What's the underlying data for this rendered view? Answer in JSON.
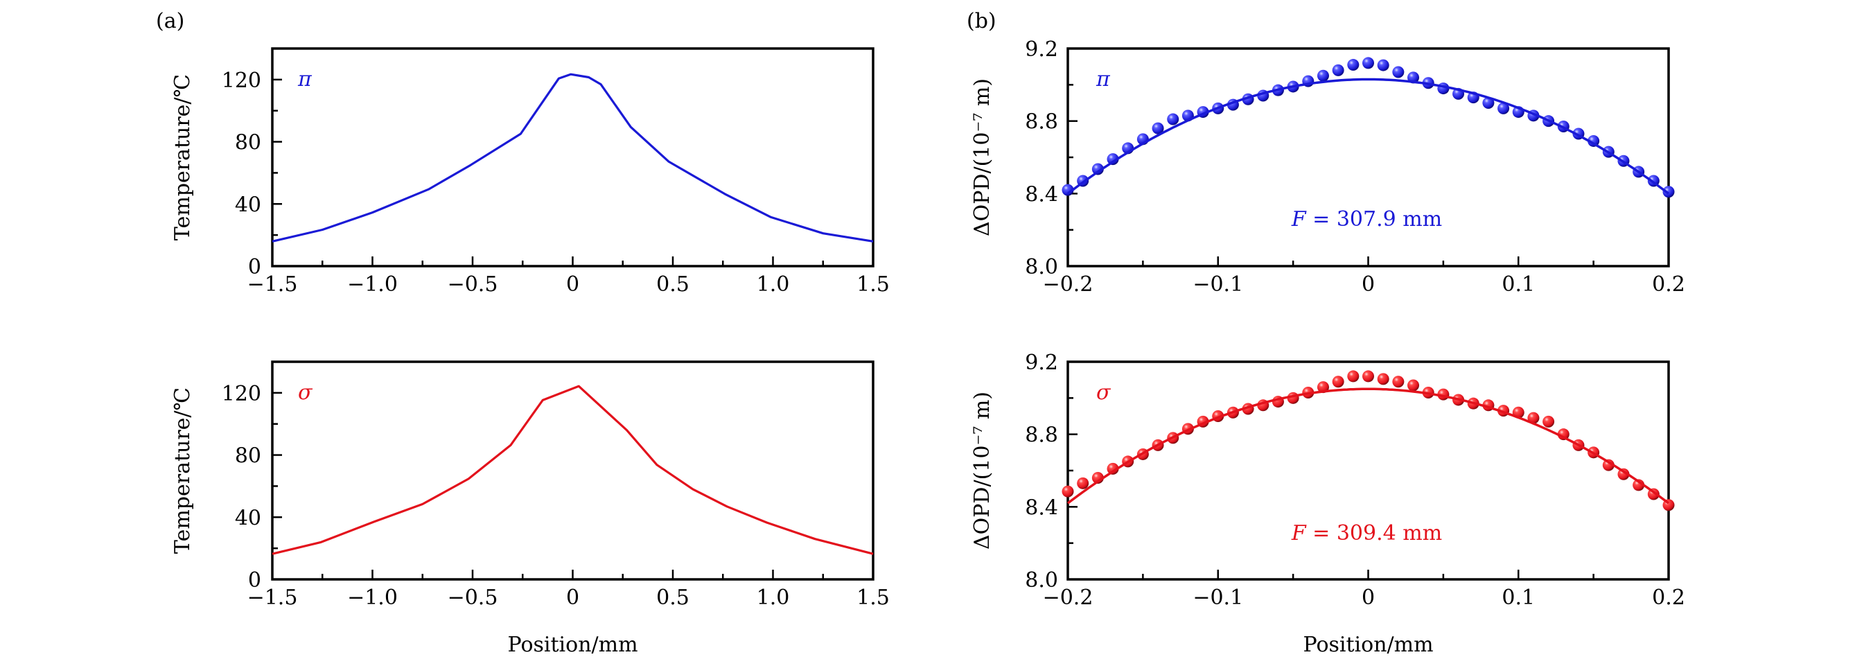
{
  "figure": {
    "panel_labels": [
      "(a)",
      "(b)"
    ],
    "shared_xlabel": "Position/mm"
  },
  "colors": {
    "pi": "#1a1ad6",
    "sigma": "#e3121c",
    "axis": "#000000"
  },
  "chart_data": [
    {
      "id": "a-pi",
      "panel": "(a)",
      "type": "line",
      "title": "",
      "annotation": "π",
      "series_color_key": "pi",
      "xlabel": "",
      "ylabel": "Temperature/℃",
      "xlim": [
        -1.5,
        1.5
      ],
      "ylim": [
        0,
        140
      ],
      "xticks": [
        -1.5,
        -1.0,
        -0.5,
        0,
        0.5,
        1.0,
        1.5
      ],
      "xtick_labels": [
        "−1.5",
        "−1.0",
        "−0.5",
        "0",
        "0.5",
        "1.0",
        "1.5"
      ],
      "yticks": [
        0,
        40,
        80,
        120
      ],
      "ytick_labels": [
        "0",
        "40",
        "80",
        "120"
      ],
      "y_minor_step": 20,
      "x_minor_step": 0.25,
      "grid": false,
      "series": [
        {
          "name": "π",
          "x": [
            -1.5,
            -1.25,
            -1.0,
            -0.72,
            -0.51,
            -0.26,
            -0.07,
            -0.01,
            0.08,
            0.14,
            0.29,
            0.48,
            0.76,
            0.99,
            1.25,
            1.5
          ],
          "y": [
            15.9,
            23.4,
            34.5,
            49.4,
            65.0,
            85.1,
            120.7,
            123.4,
            121.5,
            117.0,
            89.5,
            67.2,
            46.4,
            31.5,
            21.1,
            15.9
          ]
        }
      ]
    },
    {
      "id": "a-sigma",
      "panel": "(a)",
      "type": "line",
      "title": "",
      "annotation": "σ",
      "series_color_key": "sigma",
      "xlabel": "Position/mm",
      "ylabel": "Temperature/℃",
      "xlim": [
        -1.5,
        1.5
      ],
      "ylim": [
        0,
        140
      ],
      "xticks": [
        -1.5,
        -1.0,
        -0.5,
        0,
        0.5,
        1.0,
        1.5
      ],
      "xtick_labels": [
        "−1.5",
        "−1.0",
        "−0.5",
        "0",
        "0.5",
        "1.0",
        "1.5"
      ],
      "yticks": [
        0,
        40,
        80,
        120
      ],
      "ytick_labels": [
        "0",
        "40",
        "80",
        "120"
      ],
      "y_minor_step": 20,
      "x_minor_step": 0.25,
      "grid": false,
      "series": [
        {
          "name": "σ",
          "x": [
            -1.5,
            -1.26,
            -0.99,
            -0.75,
            -0.52,
            -0.31,
            -0.15,
            0.03,
            0.27,
            0.42,
            0.6,
            0.77,
            0.97,
            1.21,
            1.5
          ],
          "y": [
            16.4,
            23.8,
            37.2,
            48.4,
            64.7,
            86.3,
            115.3,
            124.3,
            96.0,
            73.7,
            58.0,
            46.9,
            36.5,
            26.0,
            16.4
          ]
        }
      ]
    },
    {
      "id": "b-pi",
      "panel": "(b)",
      "type": "scatter",
      "title": "",
      "annotation": "π",
      "fit_label_prefix": "F",
      "fit_label_value": "= 307.9 mm",
      "series_color_key": "pi",
      "xlabel": "",
      "ylabel": "ΔOPD/(10⁻⁷ m)",
      "xlim": [
        -0.2,
        0.2
      ],
      "ylim": [
        8.0,
        9.2
      ],
      "xticks": [
        -0.2,
        -0.1,
        0,
        0.1,
        0.2
      ],
      "xtick_labels": [
        "−0.2",
        "−0.1",
        "0",
        "0.1",
        "0.2"
      ],
      "yticks": [
        8.0,
        8.4,
        8.8,
        9.2
      ],
      "ytick_labels": [
        "8.0",
        "8.4",
        "8.8",
        "9.2"
      ],
      "y_minor_step": 0.2,
      "x_minor_step": 0.05,
      "grid": false,
      "series": [
        {
          "name": "measured",
          "kind": "points",
          "x": [
            -0.2,
            -0.19,
            -0.18,
            -0.17,
            -0.16,
            -0.15,
            -0.14,
            -0.13,
            -0.12,
            -0.11,
            -0.1,
            -0.09,
            -0.08,
            -0.07,
            -0.06,
            -0.05,
            -0.04,
            -0.03,
            -0.02,
            -0.01,
            0.0,
            0.01,
            0.02,
            0.03,
            0.04,
            0.05,
            0.06,
            0.07,
            0.08,
            0.09,
            0.1,
            0.11,
            0.12,
            0.13,
            0.14,
            0.15,
            0.16,
            0.17,
            0.18,
            0.19,
            0.2
          ],
          "y": [
            8.42,
            8.47,
            8.535,
            8.59,
            8.65,
            8.7,
            8.76,
            8.81,
            8.83,
            8.85,
            8.87,
            8.89,
            8.92,
            8.94,
            8.97,
            8.99,
            9.02,
            9.05,
            9.08,
            9.11,
            9.12,
            9.108,
            9.07,
            9.04,
            9.01,
            8.98,
            8.95,
            8.93,
            8.9,
            8.87,
            8.85,
            8.83,
            8.8,
            8.77,
            8.73,
            8.69,
            8.63,
            8.58,
            8.52,
            8.47,
            8.41
          ]
        },
        {
          "name": "fit",
          "kind": "parabola",
          "vertex_x": 0.0,
          "vertex_y": 9.03,
          "edge_y": 8.4
        }
      ]
    },
    {
      "id": "b-sigma",
      "panel": "(b)",
      "type": "scatter",
      "title": "",
      "annotation": "σ",
      "fit_label_prefix": "F",
      "fit_label_value": "= 309.4 mm",
      "series_color_key": "sigma",
      "xlabel": "Position/mm",
      "ylabel": "ΔOPD/(10⁻⁷ m)",
      "xlim": [
        -0.2,
        0.2
      ],
      "ylim": [
        8.0,
        9.2
      ],
      "xticks": [
        -0.2,
        -0.1,
        0,
        0.1,
        0.2
      ],
      "xtick_labels": [
        "−0.2",
        "−0.1",
        "0",
        "0.1",
        "0.2"
      ],
      "yticks": [
        8.0,
        8.4,
        8.8,
        9.2
      ],
      "ytick_labels": [
        "8.0",
        "8.4",
        "8.8",
        "9.2"
      ],
      "y_minor_step": 0.2,
      "x_minor_step": 0.05,
      "grid": false,
      "series": [
        {
          "name": "measured",
          "kind": "points",
          "x": [
            -0.2,
            -0.19,
            -0.18,
            -0.17,
            -0.16,
            -0.15,
            -0.14,
            -0.13,
            -0.12,
            -0.11,
            -0.1,
            -0.09,
            -0.08,
            -0.07,
            -0.06,
            -0.05,
            -0.04,
            -0.03,
            -0.02,
            -0.01,
            0.0,
            0.01,
            0.02,
            0.03,
            0.04,
            0.05,
            0.06,
            0.07,
            0.08,
            0.09,
            0.1,
            0.11,
            0.12,
            0.13,
            0.14,
            0.15,
            0.16,
            0.17,
            0.18,
            0.19,
            0.2
          ],
          "y": [
            8.485,
            8.53,
            8.56,
            8.61,
            8.65,
            8.69,
            8.74,
            8.78,
            8.83,
            8.87,
            8.9,
            8.92,
            8.94,
            8.96,
            8.98,
            9.0,
            9.03,
            9.06,
            9.09,
            9.12,
            9.12,
            9.105,
            9.09,
            9.07,
            9.03,
            9.02,
            8.99,
            8.97,
            8.96,
            8.93,
            8.92,
            8.89,
            8.87,
            8.8,
            8.74,
            8.7,
            8.63,
            8.58,
            8.52,
            8.47,
            8.41
          ]
        },
        {
          "name": "fit",
          "kind": "parabola",
          "vertex_x": 0.0,
          "vertex_y": 9.05,
          "edge_y": 8.42
        }
      ]
    }
  ]
}
